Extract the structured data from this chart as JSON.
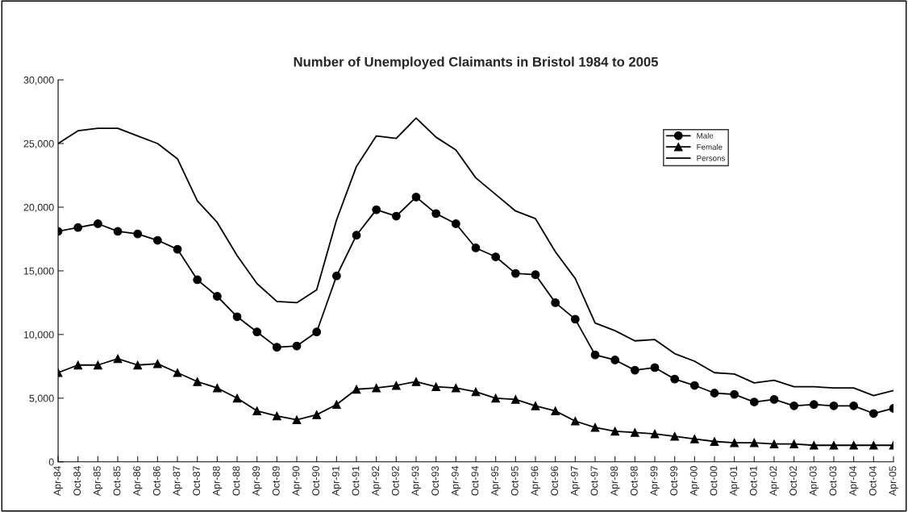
{
  "chart_data": {
    "type": "line",
    "title": "Number of Unemployed Claimants in Bristol 1984 to 2005",
    "categories": [
      "Apr-84",
      "Oct-84",
      "Apr-85",
      "Oct-85",
      "Apr-86",
      "Oct-86",
      "Apr-87",
      "Oct-87",
      "Apr-88",
      "Oct-88",
      "Apr-89",
      "Oct-89",
      "Apr-90",
      "Oct-90",
      "Apr-91",
      "Oct-91",
      "Apr-92",
      "Oct-92",
      "Apr-93",
      "Oct-93",
      "Apr-94",
      "Oct-94",
      "Apr-95",
      "Oct-95",
      "Apr-96",
      "Oct-96",
      "Apr-97",
      "Oct-97",
      "Apr-98",
      "Oct-98",
      "Apr-99",
      "Oct-99",
      "Apr-00",
      "Oct-00",
      "Apr-01",
      "Oct-01",
      "Apr-02",
      "Oct-02",
      "Apr-03",
      "Oct-03",
      "Apr-04",
      "Oct-04",
      "Apr-05"
    ],
    "series": [
      {
        "name": "Male",
        "color": "#000000",
        "marker": "circle",
        "values": [
          18100,
          18400,
          18700,
          18100,
          17900,
          17400,
          16700,
          14300,
          13000,
          11400,
          10200,
          9000,
          9100,
          10200,
          14600,
          17800,
          19800,
          19300,
          20800,
          19500,
          18700,
          16800,
          16100,
          14800,
          14700,
          12500,
          11200,
          8400,
          8000,
          7200,
          7400,
          6500,
          6000,
          5400,
          5300,
          4700,
          4900,
          4400,
          4500,
          4400,
          4400,
          3800,
          4200
        ]
      },
      {
        "name": "Female",
        "color": "#000000",
        "marker": "triangle",
        "values": [
          7000,
          7600,
          7600,
          8100,
          7600,
          7700,
          7000,
          6300,
          5800,
          5000,
          4000,
          3600,
          3300,
          3700,
          4500,
          5700,
          5800,
          6000,
          6300,
          5900,
          5800,
          5500,
          5000,
          4900,
          4400,
          4000,
          3200,
          2700,
          2400,
          2300,
          2200,
          2000,
          1800,
          1600,
          1500,
          1500,
          1400,
          1400,
          1300,
          1300,
          1300,
          1300,
          1300
        ]
      },
      {
        "name": "Persons",
        "color": "#000000",
        "marker": "none",
        "values": [
          25000,
          26000,
          26200,
          26200,
          25600,
          25000,
          23800,
          20500,
          18800,
          16200,
          14000,
          12600,
          12500,
          13500,
          19000,
          23200,
          25600,
          25400,
          27000,
          25500,
          24500,
          22300,
          21000,
          19700,
          19100,
          16500,
          14400,
          10900,
          10300,
          9500,
          9600,
          8500,
          7900,
          7000,
          6900,
          6200,
          6400,
          5900,
          5900,
          5800,
          5800,
          5200,
          5600
        ]
      }
    ],
    "ylim": [
      0,
      30000
    ],
    "yticks": [
      {
        "value": 0,
        "label": "0"
      },
      {
        "value": 5000,
        "label": "5,000"
      },
      {
        "value": 10000,
        "label": "10,000"
      },
      {
        "value": 15000,
        "label": "15,000"
      },
      {
        "value": 20000,
        "label": "20,000"
      },
      {
        "value": 25000,
        "label": "25,000"
      },
      {
        "value": 30000,
        "label": "30,000"
      }
    ],
    "grid": false,
    "legend": "top right"
  }
}
